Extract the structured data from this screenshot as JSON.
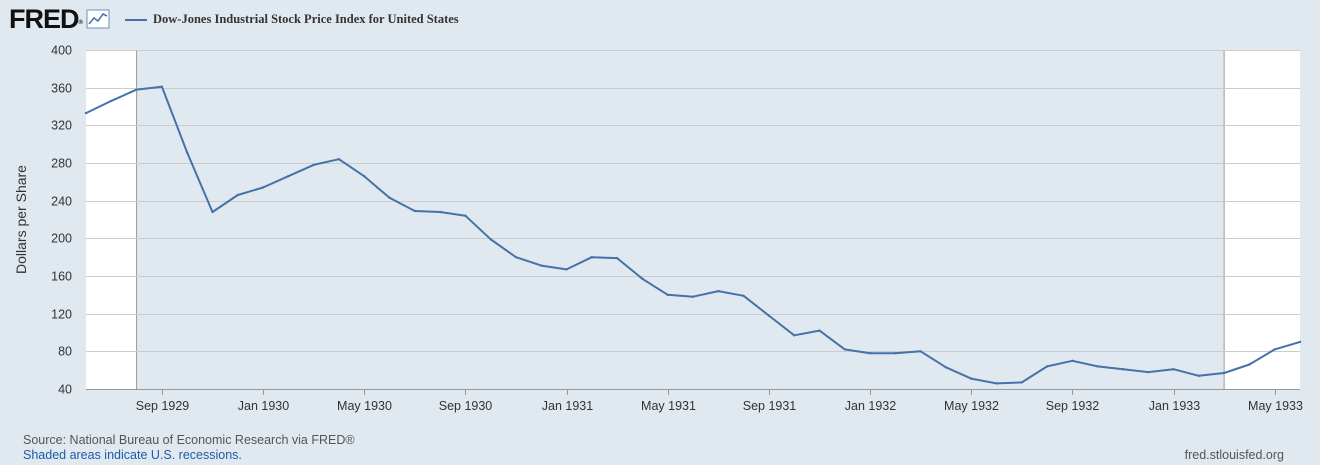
{
  "header": {
    "logo_text": "FRED",
    "logo_mark": "®",
    "legend_label": "Dow-Jones Industrial Stock Price Index for United States"
  },
  "footer": {
    "source": "Source: National Bureau of Economic Research via FRED®",
    "recession_note": "Shaded areas indicate U.S. recessions.",
    "site": "fred.stlouisfed.org"
  },
  "colors": {
    "series": "#4572a7",
    "plot_background": "#ffffff",
    "recession_shade": "#e1e9f0",
    "gridline": "#cccccc"
  },
  "chart_data": {
    "type": "line",
    "title": "Dow-Jones Industrial Stock Price Index for United States",
    "xlabel": "",
    "ylabel": "Dollars per Share",
    "ylim": [
      40,
      400
    ],
    "yticks": [
      40,
      80,
      120,
      160,
      200,
      240,
      280,
      320,
      360,
      400
    ],
    "xlim": [
      "1929-06",
      "1933-06"
    ],
    "xticks": [
      {
        "date": "1929-09",
        "label": "Sep 1929"
      },
      {
        "date": "1930-01",
        "label": "Jan 1930"
      },
      {
        "date": "1930-05",
        "label": "May 1930"
      },
      {
        "date": "1930-09",
        "label": "Sep 1930"
      },
      {
        "date": "1931-01",
        "label": "Jan 1931"
      },
      {
        "date": "1931-05",
        "label": "May 1931"
      },
      {
        "date": "1931-09",
        "label": "Sep 1931"
      },
      {
        "date": "1932-01",
        "label": "Jan 1932"
      },
      {
        "date": "1932-05",
        "label": "May 1932"
      },
      {
        "date": "1932-09",
        "label": "Sep 1932"
      },
      {
        "date": "1933-01",
        "label": "Jan 1933"
      },
      {
        "date": "1933-05",
        "label": "May 1933"
      }
    ],
    "recessions": [
      {
        "start": "1929-08",
        "end": "1933-03"
      }
    ],
    "series": [
      {
        "name": "Dow-Jones Industrial Stock Price Index for United States",
        "color": "#4572a7",
        "x": [
          "1929-06",
          "1929-07",
          "1929-08",
          "1929-09",
          "1929-10",
          "1929-11",
          "1929-12",
          "1930-01",
          "1930-02",
          "1930-03",
          "1930-04",
          "1930-05",
          "1930-06",
          "1930-07",
          "1930-08",
          "1930-09",
          "1930-10",
          "1930-11",
          "1930-12",
          "1931-01",
          "1931-02",
          "1931-03",
          "1931-04",
          "1931-05",
          "1931-06",
          "1931-07",
          "1931-08",
          "1931-09",
          "1931-10",
          "1931-11",
          "1931-12",
          "1932-01",
          "1932-02",
          "1932-03",
          "1932-04",
          "1932-05",
          "1932-06",
          "1932-07",
          "1932-08",
          "1932-09",
          "1932-10",
          "1932-11",
          "1932-12",
          "1933-01",
          "1933-02",
          "1933-03",
          "1933-04",
          "1933-05",
          "1933-06"
        ],
        "values": [
          333,
          346,
          358,
          361,
          291,
          228,
          246,
          254,
          266,
          278,
          284,
          266,
          243,
          229,
          228,
          224,
          199,
          180,
          171,
          167,
          180,
          179,
          157,
          140,
          138,
          144,
          139,
          118,
          97,
          102,
          82,
          78,
          78,
          80,
          63,
          51,
          46,
          47,
          64,
          70,
          64,
          61,
          58,
          61,
          54,
          57,
          66,
          82,
          90
        ]
      }
    ]
  }
}
